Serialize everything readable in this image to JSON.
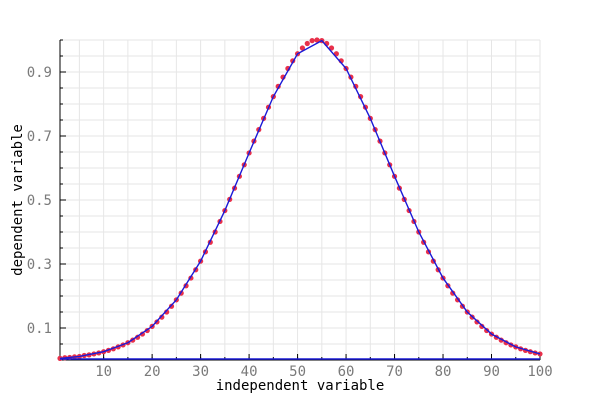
{
  "chart_data": {
    "type": "scatter",
    "title": "",
    "xlabel": "independent variable",
    "ylabel": "dependent variable",
    "xlim": [
      1,
      100
    ],
    "ylim": [
      0,
      1.0
    ],
    "xticks": [
      10,
      20,
      30,
      40,
      50,
      60,
      70,
      80,
      90,
      100
    ],
    "yticks": [
      0.1,
      0.3,
      0.5,
      0.7,
      0.9
    ],
    "grid": true,
    "legend": "none",
    "colors": {
      "points": "#e8304a",
      "fit_line": "#1a1ad8",
      "baseline": "#1a1ad8"
    },
    "series": [
      {
        "kind": "points",
        "x": [
          1,
          2,
          3,
          4,
          5,
          6,
          7,
          8,
          9,
          10,
          11,
          12,
          13,
          14,
          15,
          16,
          17,
          18,
          19,
          20,
          21,
          22,
          23,
          24,
          25,
          26,
          27,
          28,
          29,
          30,
          31,
          32,
          33,
          34,
          35,
          36,
          37,
          38,
          39,
          40,
          41,
          42,
          43,
          44,
          45,
          46,
          47,
          48,
          49,
          50,
          51,
          52,
          53,
          54,
          55,
          56,
          57,
          58,
          59,
          60,
          61,
          62,
          63,
          64,
          65,
          66,
          67,
          68,
          69,
          70,
          71,
          72,
          73,
          74,
          75,
          76,
          77,
          78,
          79,
          80,
          81,
          82,
          83,
          84,
          85,
          86,
          87,
          88,
          89,
          90,
          91,
          92,
          93,
          94,
          95,
          96,
          97,
          98,
          99,
          100
        ],
        "y": [
          0.005,
          0.007,
          0.008,
          0.01,
          0.011,
          0.014,
          0.016,
          0.019,
          0.022,
          0.026,
          0.03,
          0.035,
          0.041,
          0.047,
          0.054,
          0.062,
          0.071,
          0.081,
          0.092,
          0.105,
          0.119,
          0.134,
          0.15,
          0.168,
          0.188,
          0.209,
          0.232,
          0.256,
          0.282,
          0.309,
          0.338,
          0.368,
          0.4,
          0.433,
          0.467,
          0.502,
          0.537,
          0.574,
          0.61,
          0.647,
          0.684,
          0.72,
          0.755,
          0.79,
          0.823,
          0.855,
          0.884,
          0.911,
          0.935,
          0.957,
          0.975,
          0.989,
          0.998,
          1.0,
          0.998,
          0.989,
          0.975,
          0.957,
          0.935,
          0.911,
          0.884,
          0.855,
          0.823,
          0.79,
          0.755,
          0.72,
          0.684,
          0.647,
          0.61,
          0.574,
          0.537,
          0.502,
          0.467,
          0.433,
          0.4,
          0.368,
          0.338,
          0.309,
          0.282,
          0.256,
          0.232,
          0.209,
          0.188,
          0.168,
          0.15,
          0.134,
          0.119,
          0.105,
          0.092,
          0.081,
          0.071,
          0.062,
          0.054,
          0.047,
          0.041,
          0.035,
          0.03,
          0.026,
          0.022,
          0.019
        ]
      },
      {
        "kind": "line",
        "x": [
          1,
          5,
          10,
          15,
          20,
          25,
          30,
          35,
          40,
          45,
          50,
          55,
          60,
          65,
          70,
          75,
          80,
          85,
          90,
          95,
          100
        ],
        "y": [
          0.005,
          0.011,
          0.026,
          0.054,
          0.105,
          0.188,
          0.309,
          0.467,
          0.647,
          0.823,
          0.957,
          0.998,
          0.911,
          0.755,
          0.574,
          0.4,
          0.256,
          0.15,
          0.081,
          0.041,
          0.019
        ]
      },
      {
        "kind": "baseline",
        "x": [
          1,
          100
        ],
        "y": [
          0.0,
          0.0
        ]
      }
    ]
  }
}
